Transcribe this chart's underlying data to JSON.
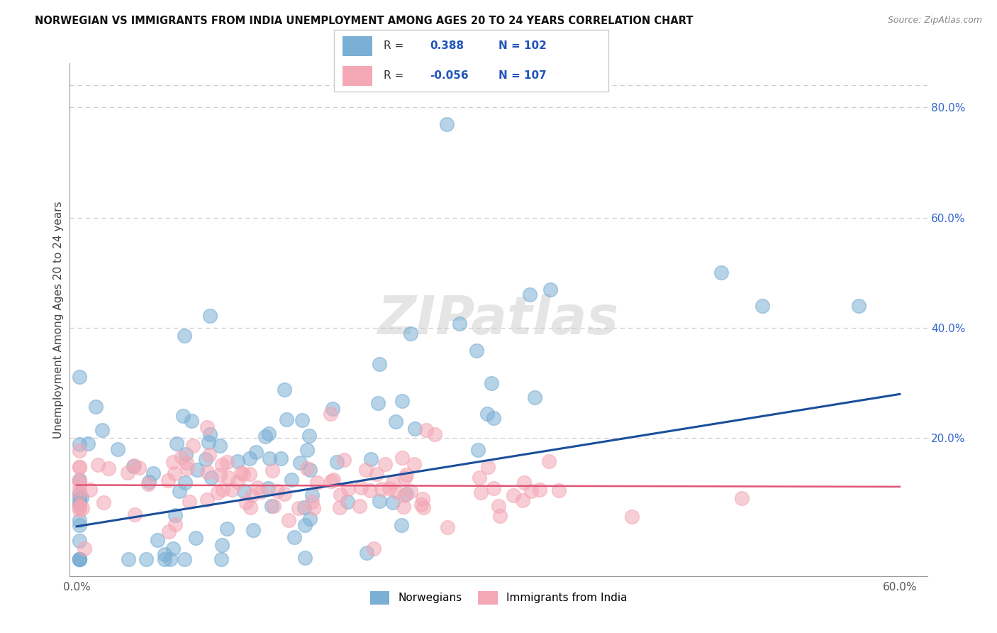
{
  "title": "NORWEGIAN VS IMMIGRANTS FROM INDIA UNEMPLOYMENT AMONG AGES 20 TO 24 YEARS CORRELATION CHART",
  "source": "Source: ZipAtlas.com",
  "ylabel": "Unemployment Among Ages 20 to 24 years",
  "xlim": [
    -0.005,
    0.62
  ],
  "ylim": [
    -0.05,
    0.88
  ],
  "xtick_positions": [
    0.0,
    0.1,
    0.2,
    0.3,
    0.4,
    0.5,
    0.6
  ],
  "xticklabels": [
    "0.0%",
    "",
    "",
    "",
    "",
    "",
    "60.0%"
  ],
  "ytick_positions": [
    0.0,
    0.2,
    0.4,
    0.6,
    0.8
  ],
  "yticklabels_right": [
    "",
    "20.0%",
    "40.0%",
    "60.0%",
    "80.0%"
  ],
  "norwegian_color": "#7BAFD4",
  "indian_color": "#F4A7B5",
  "trend_norwegian_color": "#1B4F9C",
  "trend_indian_color": "#E05575",
  "legend_R_norwegian": "0.388",
  "legend_N_norwegian": "102",
  "legend_R_indian": "-0.056",
  "legend_N_indian": "107",
  "watermark": "ZIPatlas",
  "grid_color": "#CCCCCC",
  "watermark_color": "#DDDDDD",
  "title_color": "#111111",
  "source_color": "#888888",
  "ylabel_color": "#444444",
  "tick_label_color": "#555555",
  "right_tick_color": "#3366CC",
  "legend_text_dark": "#333333",
  "legend_text_blue": "#2255BB"
}
